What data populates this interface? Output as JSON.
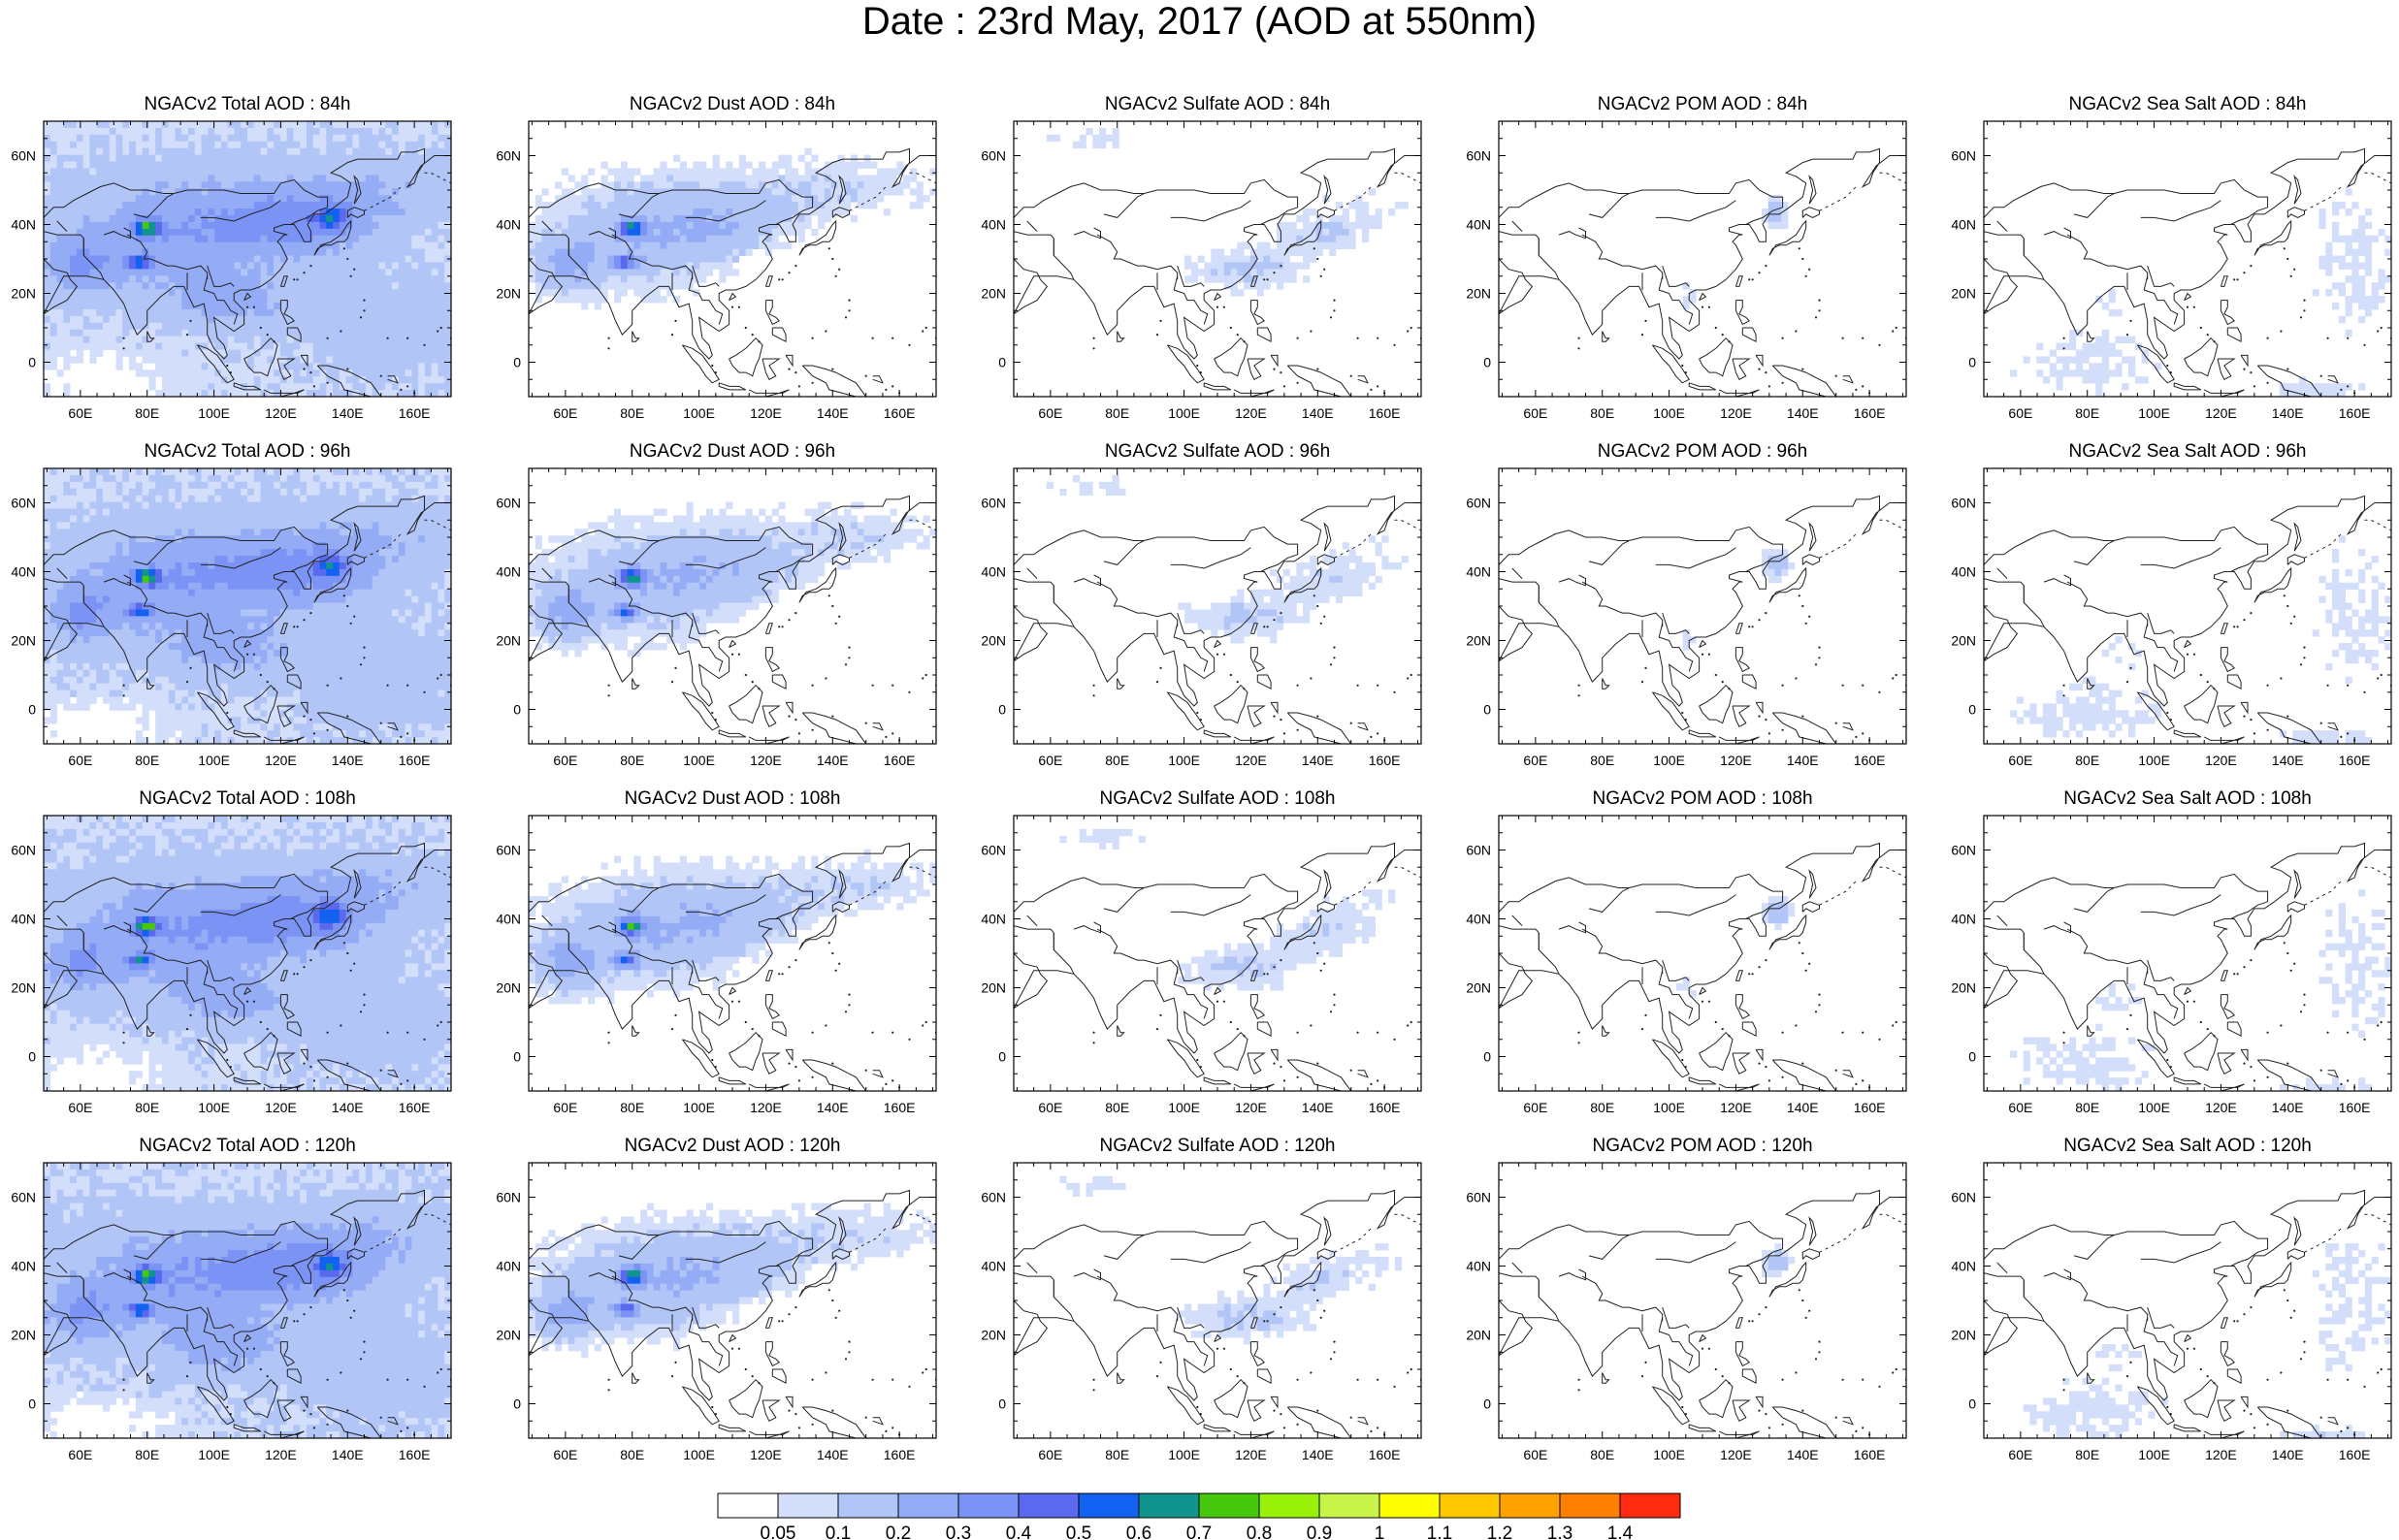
{
  "figure": {
    "title": "Date : 23rd May, 2017 (AOD at 550nm)",
    "lat_ticks": [
      "60N",
      "40N",
      "20N",
      "0"
    ],
    "lon_ticks": [
      "60E",
      "80E",
      "100E",
      "120E",
      "140E",
      "160E"
    ],
    "panels": [
      {
        "title": "NGACv2 Total AOD : 84h",
        "field": "total",
        "lead": "84h"
      },
      {
        "title": "NGACv2 Dust AOD : 84h",
        "field": "dust",
        "lead": "84h"
      },
      {
        "title": "NGACv2 Sulfate AOD : 84h",
        "field": "sulfate",
        "lead": "84h"
      },
      {
        "title": "NGACv2 POM AOD : 84h",
        "field": "pom",
        "lead": "84h"
      },
      {
        "title": "NGACv2 Sea Salt AOD : 84h",
        "field": "seasalt",
        "lead": "84h"
      },
      {
        "title": "NGACv2 Total AOD : 96h",
        "field": "total",
        "lead": "96h"
      },
      {
        "title": "NGACv2 Dust AOD : 96h",
        "field": "dust",
        "lead": "96h"
      },
      {
        "title": "NGACv2 Sulfate AOD : 96h",
        "field": "sulfate",
        "lead": "96h"
      },
      {
        "title": "NGACv2 POM AOD : 96h",
        "field": "pom",
        "lead": "96h"
      },
      {
        "title": "NGACv2 Sea Salt AOD : 96h",
        "field": "seasalt",
        "lead": "96h"
      },
      {
        "title": "NGACv2 Total AOD : 108h",
        "field": "total",
        "lead": "108h"
      },
      {
        "title": "NGACv2 Dust AOD : 108h",
        "field": "dust",
        "lead": "108h"
      },
      {
        "title": "NGACv2 Sulfate AOD : 108h",
        "field": "sulfate",
        "lead": "108h"
      },
      {
        "title": "NGACv2 POM AOD : 108h",
        "field": "pom",
        "lead": "108h"
      },
      {
        "title": "NGACv2 Sea Salt AOD : 108h",
        "field": "seasalt",
        "lead": "108h"
      },
      {
        "title": "NGACv2 Total AOD : 120h",
        "field": "total",
        "lead": "120h"
      },
      {
        "title": "NGACv2 Dust AOD : 120h",
        "field": "dust",
        "lead": "120h"
      },
      {
        "title": "NGACv2 Sulfate AOD : 120h",
        "field": "sulfate",
        "lead": "120h"
      },
      {
        "title": "NGACv2 POM AOD : 120h",
        "field": "pom",
        "lead": "120h"
      },
      {
        "title": "NGACv2 Sea Salt  AOD : 120h",
        "field": "seasalt",
        "lead": "120h"
      }
    ],
    "colorbar": {
      "labels": [
        "0.05",
        "0.1",
        "0.2",
        "0.3",
        "0.4",
        "0.5",
        "0.6",
        "0.7",
        "0.8",
        "0.9",
        "1",
        "1.1",
        "1.2",
        "1.3",
        "1.4"
      ],
      "colors": [
        "#ffffff",
        "#d3defb",
        "#b2c5f7",
        "#94acf5",
        "#7b93f5",
        "#5a69ee",
        "#1261f0",
        "#11948e",
        "#47c80f",
        "#99f009",
        "#c8f44a",
        "#ffff00",
        "#ffc700",
        "#ffa200",
        "#ff7f00",
        "#ff2b11"
      ]
    }
  }
}
